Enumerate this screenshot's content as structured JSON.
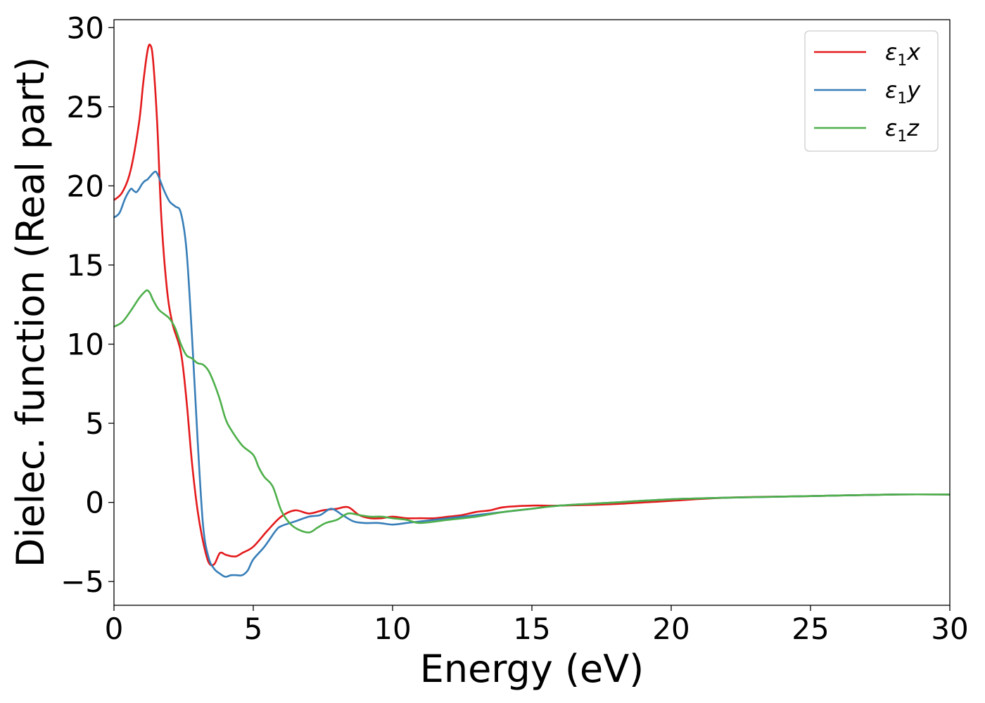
{
  "chart_data": {
    "type": "line",
    "xlabel": "Energy (eV)",
    "ylabel": "Dielec. function (Real part)",
    "xlim": [
      0,
      30
    ],
    "ylim": [
      -6.5,
      30.5
    ],
    "xticks": [
      "0",
      "5",
      "10",
      "15",
      "20",
      "25",
      "30"
    ],
    "yticks": [
      "−5",
      "0",
      "5",
      "10",
      "15",
      "20",
      "25",
      "30"
    ],
    "grid": false,
    "legend_position": "top-right",
    "series": [
      {
        "name": "ε₁x",
        "label_base": "ε",
        "label_sub": "1",
        "label_suffix": "x",
        "color": "#e41a1c",
        "x": [
          0,
          0.3,
          0.6,
          0.9,
          1.05,
          1.2,
          1.3,
          1.4,
          1.55,
          1.7,
          1.9,
          2.1,
          2.4,
          2.6,
          2.8,
          3.0,
          3.2,
          3.4,
          3.6,
          3.8,
          4.0,
          4.2,
          4.4,
          4.6,
          5.0,
          5.5,
          6.0,
          6.5,
          7.0,
          7.5,
          8.0,
          8.4,
          8.8,
          9.2,
          9.6,
          10.0,
          10.5,
          11.0,
          11.5,
          12.0,
          12.5,
          13.0,
          13.5,
          14.0,
          15.0,
          16.0,
          18.0,
          20.0,
          22.0,
          25.0,
          28.0,
          30.0
        ],
        "y": [
          19.1,
          19.6,
          21.0,
          24.0,
          26.5,
          28.5,
          28.9,
          28.0,
          24.0,
          18.0,
          13.5,
          11.3,
          9.5,
          6.5,
          2.5,
          -0.5,
          -2.5,
          -3.8,
          -3.9,
          -3.2,
          -3.3,
          -3.4,
          -3.4,
          -3.2,
          -2.8,
          -1.8,
          -0.9,
          -0.5,
          -0.7,
          -0.5,
          -0.4,
          -0.3,
          -0.8,
          -1.0,
          -1.0,
          -0.9,
          -1.0,
          -1.0,
          -1.0,
          -0.9,
          -0.8,
          -0.6,
          -0.5,
          -0.3,
          -0.2,
          -0.2,
          -0.1,
          0.1,
          0.3,
          0.4,
          0.5,
          0.5
        ]
      },
      {
        "name": "ε₁y",
        "label_base": "ε",
        "label_sub": "1",
        "label_suffix": "y",
        "color": "#377eb8",
        "x": [
          0,
          0.2,
          0.4,
          0.6,
          0.7,
          0.8,
          0.9,
          1.0,
          1.1,
          1.2,
          1.3,
          1.4,
          1.5,
          1.6,
          1.8,
          2.0,
          2.2,
          2.4,
          2.6,
          2.8,
          3.0,
          3.2,
          3.4,
          3.6,
          3.8,
          4.0,
          4.2,
          4.4,
          4.6,
          4.8,
          5.0,
          5.4,
          5.8,
          6.0,
          6.5,
          7.0,
          7.4,
          7.8,
          8.2,
          8.6,
          9.0,
          9.5,
          10.0,
          10.5,
          11.0,
          12.0,
          13.0,
          14.0,
          15.0,
          16.0,
          18.0,
          20.0,
          22.0,
          25.0,
          28.0,
          30.0
        ],
        "y": [
          18.0,
          18.3,
          19.2,
          19.8,
          19.7,
          19.6,
          19.8,
          20.1,
          20.3,
          20.4,
          20.6,
          20.8,
          20.9,
          20.6,
          19.7,
          19.0,
          18.7,
          18.3,
          16.0,
          10.5,
          4.0,
          -1.5,
          -3.5,
          -4.2,
          -4.5,
          -4.7,
          -4.6,
          -4.6,
          -4.6,
          -4.3,
          -3.6,
          -2.8,
          -1.8,
          -1.5,
          -1.2,
          -0.9,
          -0.8,
          -0.4,
          -0.8,
          -1.2,
          -1.3,
          -1.3,
          -1.4,
          -1.3,
          -1.2,
          -1.0,
          -0.8,
          -0.6,
          -0.4,
          -0.2,
          0.0,
          0.2,
          0.3,
          0.4,
          0.5,
          0.5
        ]
      },
      {
        "name": "ε₁z",
        "label_base": "ε",
        "label_sub": "1",
        "label_suffix": "z",
        "color": "#4daf4a",
        "x": [
          0,
          0.3,
          0.6,
          0.9,
          1.1,
          1.2,
          1.3,
          1.4,
          1.6,
          1.8,
          2.0,
          2.2,
          2.4,
          2.6,
          2.8,
          3.0,
          3.2,
          3.4,
          3.6,
          3.8,
          4.0,
          4.2,
          4.6,
          5.0,
          5.2,
          5.4,
          5.7,
          6.0,
          6.3,
          6.6,
          7.0,
          7.3,
          7.6,
          8.0,
          8.4,
          8.8,
          9.2,
          9.6,
          10.0,
          10.5,
          11.0,
          12.0,
          13.0,
          14.0,
          15.0,
          16.0,
          18.0,
          20.0,
          22.0,
          25.0,
          28.0,
          30.0
        ],
        "y": [
          11.1,
          11.4,
          12.1,
          12.9,
          13.3,
          13.4,
          13.2,
          12.8,
          12.2,
          11.9,
          11.6,
          11.0,
          10.0,
          9.3,
          9.1,
          8.8,
          8.7,
          8.3,
          7.5,
          6.5,
          5.3,
          4.6,
          3.6,
          3.0,
          2.2,
          1.6,
          1.0,
          -0.5,
          -1.3,
          -1.7,
          -1.9,
          -1.6,
          -1.3,
          -1.1,
          -0.7,
          -0.8,
          -0.9,
          -0.9,
          -1.0,
          -1.1,
          -1.3,
          -1.1,
          -0.9,
          -0.6,
          -0.4,
          -0.2,
          0.0,
          0.2,
          0.3,
          0.4,
          0.5,
          0.5
        ]
      }
    ]
  }
}
